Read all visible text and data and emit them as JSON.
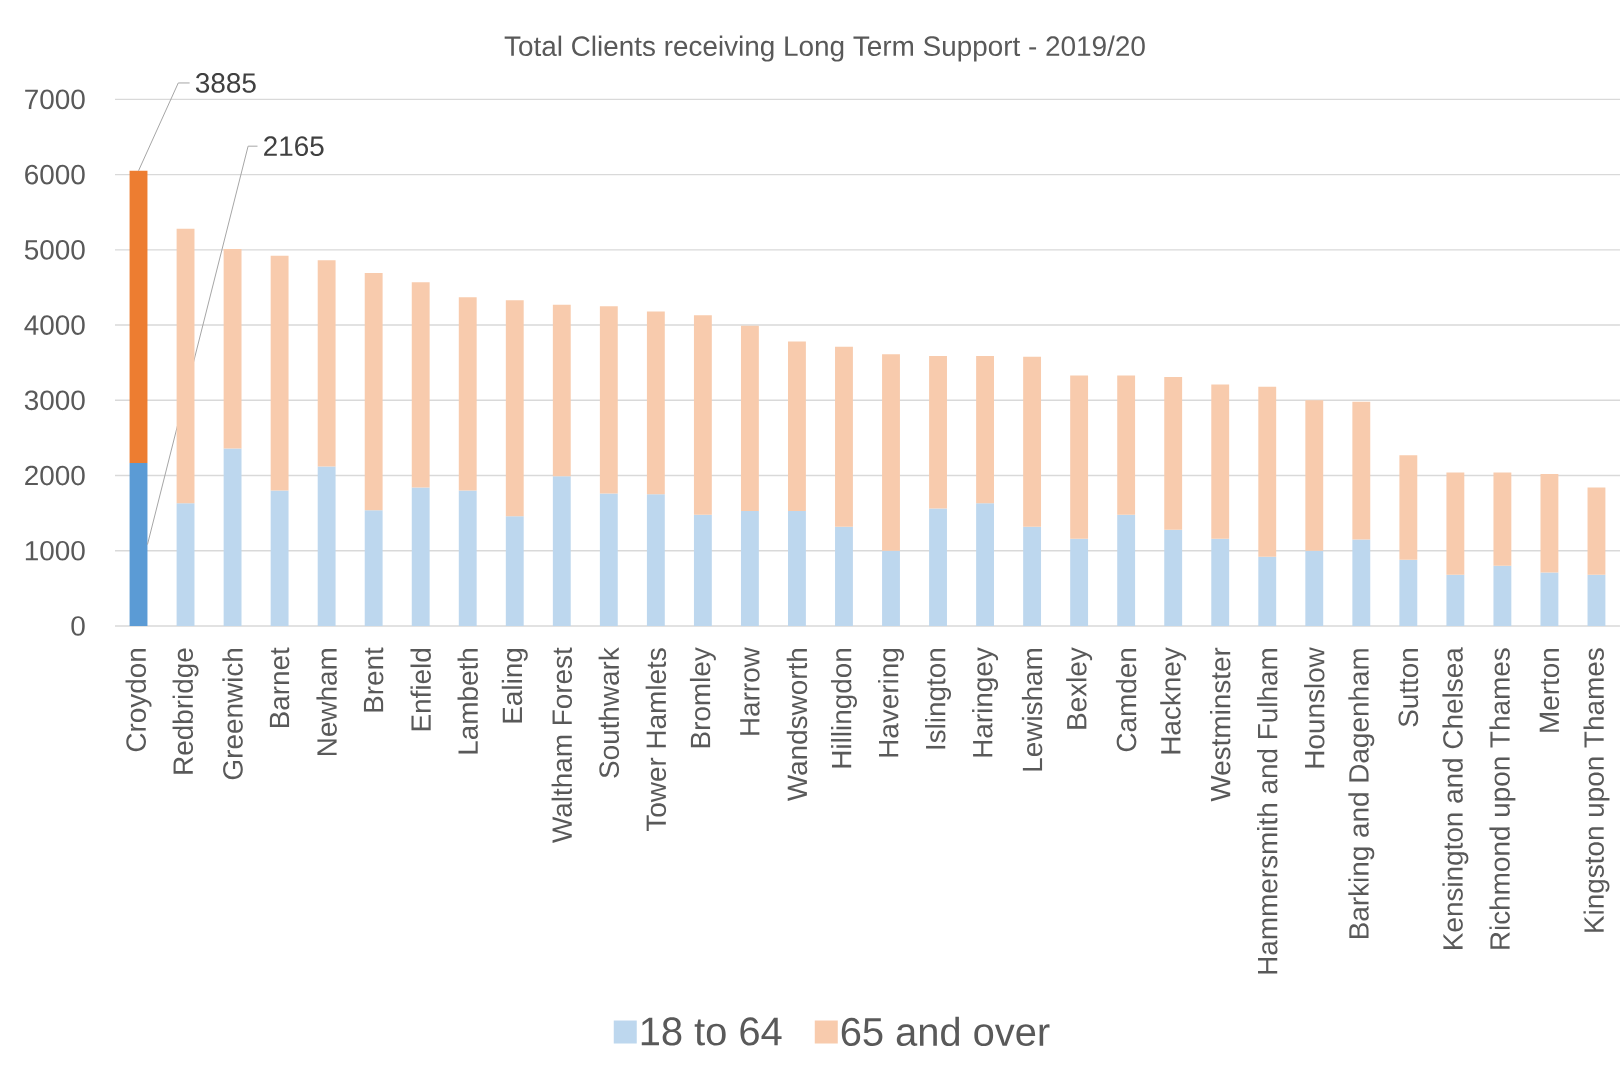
{
  "chart_data": {
    "type": "bar",
    "title": "Total Clients receiving Long Term Support - 2019/20",
    "stacked": true,
    "categories": [
      "Croydon",
      "Redbridge",
      "Greenwich",
      "Barnet",
      "Newham",
      "Brent",
      "Enfield",
      "Lambeth",
      "Ealing",
      "Waltham Forest",
      "Southwark",
      "Tower Hamlets",
      "Bromley",
      "Harrow",
      "Wandsworth",
      "Hillingdon",
      "Havering",
      "Islington",
      "Haringey",
      "Lewisham",
      "Bexley",
      "Camden",
      "Hackney",
      "Westminster",
      "Hammersmith and Fulham",
      "Hounslow",
      "Barking and Dagenham",
      "Sutton",
      "Kensington and Chelsea",
      "Richmond upon Thames",
      "Merton",
      "Kingston upon Thames"
    ],
    "series": [
      {
        "name": "18 to 64",
        "color": "#bdd7ee",
        "colors": [
          "#5b9bd5",
          "#bdd7ee",
          "#bdd7ee",
          "#bdd7ee",
          "#bdd7ee",
          "#bdd7ee",
          "#bdd7ee",
          "#bdd7ee",
          "#bdd7ee",
          "#bdd7ee",
          "#bdd7ee",
          "#bdd7ee",
          "#bdd7ee",
          "#bdd7ee",
          "#bdd7ee",
          "#bdd7ee",
          "#bdd7ee",
          "#bdd7ee",
          "#bdd7ee",
          "#bdd7ee",
          "#bdd7ee",
          "#bdd7ee",
          "#bdd7ee",
          "#bdd7ee",
          "#bdd7ee",
          "#bdd7ee",
          "#bdd7ee",
          "#bdd7ee",
          "#bdd7ee",
          "#bdd7ee",
          "#bdd7ee",
          "#bdd7ee"
        ],
        "values": [
          2165,
          1630,
          2360,
          1800,
          2120,
          1540,
          1840,
          1800,
          1460,
          1990,
          1760,
          1750,
          1480,
          1530,
          1530,
          1320,
          1000,
          1560,
          1630,
          1320,
          1160,
          1480,
          1280,
          1160,
          920,
          1000,
          1150,
          880,
          680,
          800,
          710,
          680
        ],
        "value_labels": [
          "2165",
          null,
          null,
          null,
          null,
          null,
          null,
          null,
          null,
          null,
          null,
          null,
          null,
          null,
          null,
          null,
          null,
          null,
          null,
          null,
          null,
          null,
          null,
          null,
          null,
          null,
          null,
          null,
          null,
          null,
          null,
          null
        ]
      },
      {
        "name": "65 and over",
        "color": "#f8cbad",
        "colors": [
          "#ed7d31",
          "#f8cbad",
          "#f8cbad",
          "#f8cbad",
          "#f8cbad",
          "#f8cbad",
          "#f8cbad",
          "#f8cbad",
          "#f8cbad",
          "#f8cbad",
          "#f8cbad",
          "#f8cbad",
          "#f8cbad",
          "#f8cbad",
          "#f8cbad",
          "#f8cbad",
          "#f8cbad",
          "#f8cbad",
          "#f8cbad",
          "#f8cbad",
          "#f8cbad",
          "#f8cbad",
          "#f8cbad",
          "#f8cbad",
          "#f8cbad",
          "#f8cbad",
          "#f8cbad",
          "#f8cbad",
          "#f8cbad",
          "#f8cbad",
          "#f8cbad",
          "#f8cbad"
        ],
        "values": [
          3885,
          3650,
          2650,
          3120,
          2740,
          3150,
          2730,
          2570,
          2870,
          2280,
          2490,
          2430,
          2650,
          2460,
          2250,
          2390,
          2610,
          2030,
          1960,
          2260,
          2170,
          1850,
          2030,
          2050,
          2260,
          2000,
          1830,
          1390,
          1360,
          1240,
          1310,
          1160
        ],
        "value_labels": [
          "3885",
          null,
          null,
          null,
          null,
          null,
          null,
          null,
          null,
          null,
          null,
          null,
          null,
          null,
          null,
          null,
          null,
          null,
          null,
          null,
          null,
          null,
          null,
          null,
          null,
          null,
          null,
          null,
          null,
          null,
          null,
          null
        ]
      }
    ],
    "ylim": [
      0,
      7000
    ],
    "yticks": [
      0,
      1000,
      2000,
      3000,
      4000,
      5000,
      6000,
      7000
    ],
    "grid": "y",
    "legend": "bottom"
  }
}
